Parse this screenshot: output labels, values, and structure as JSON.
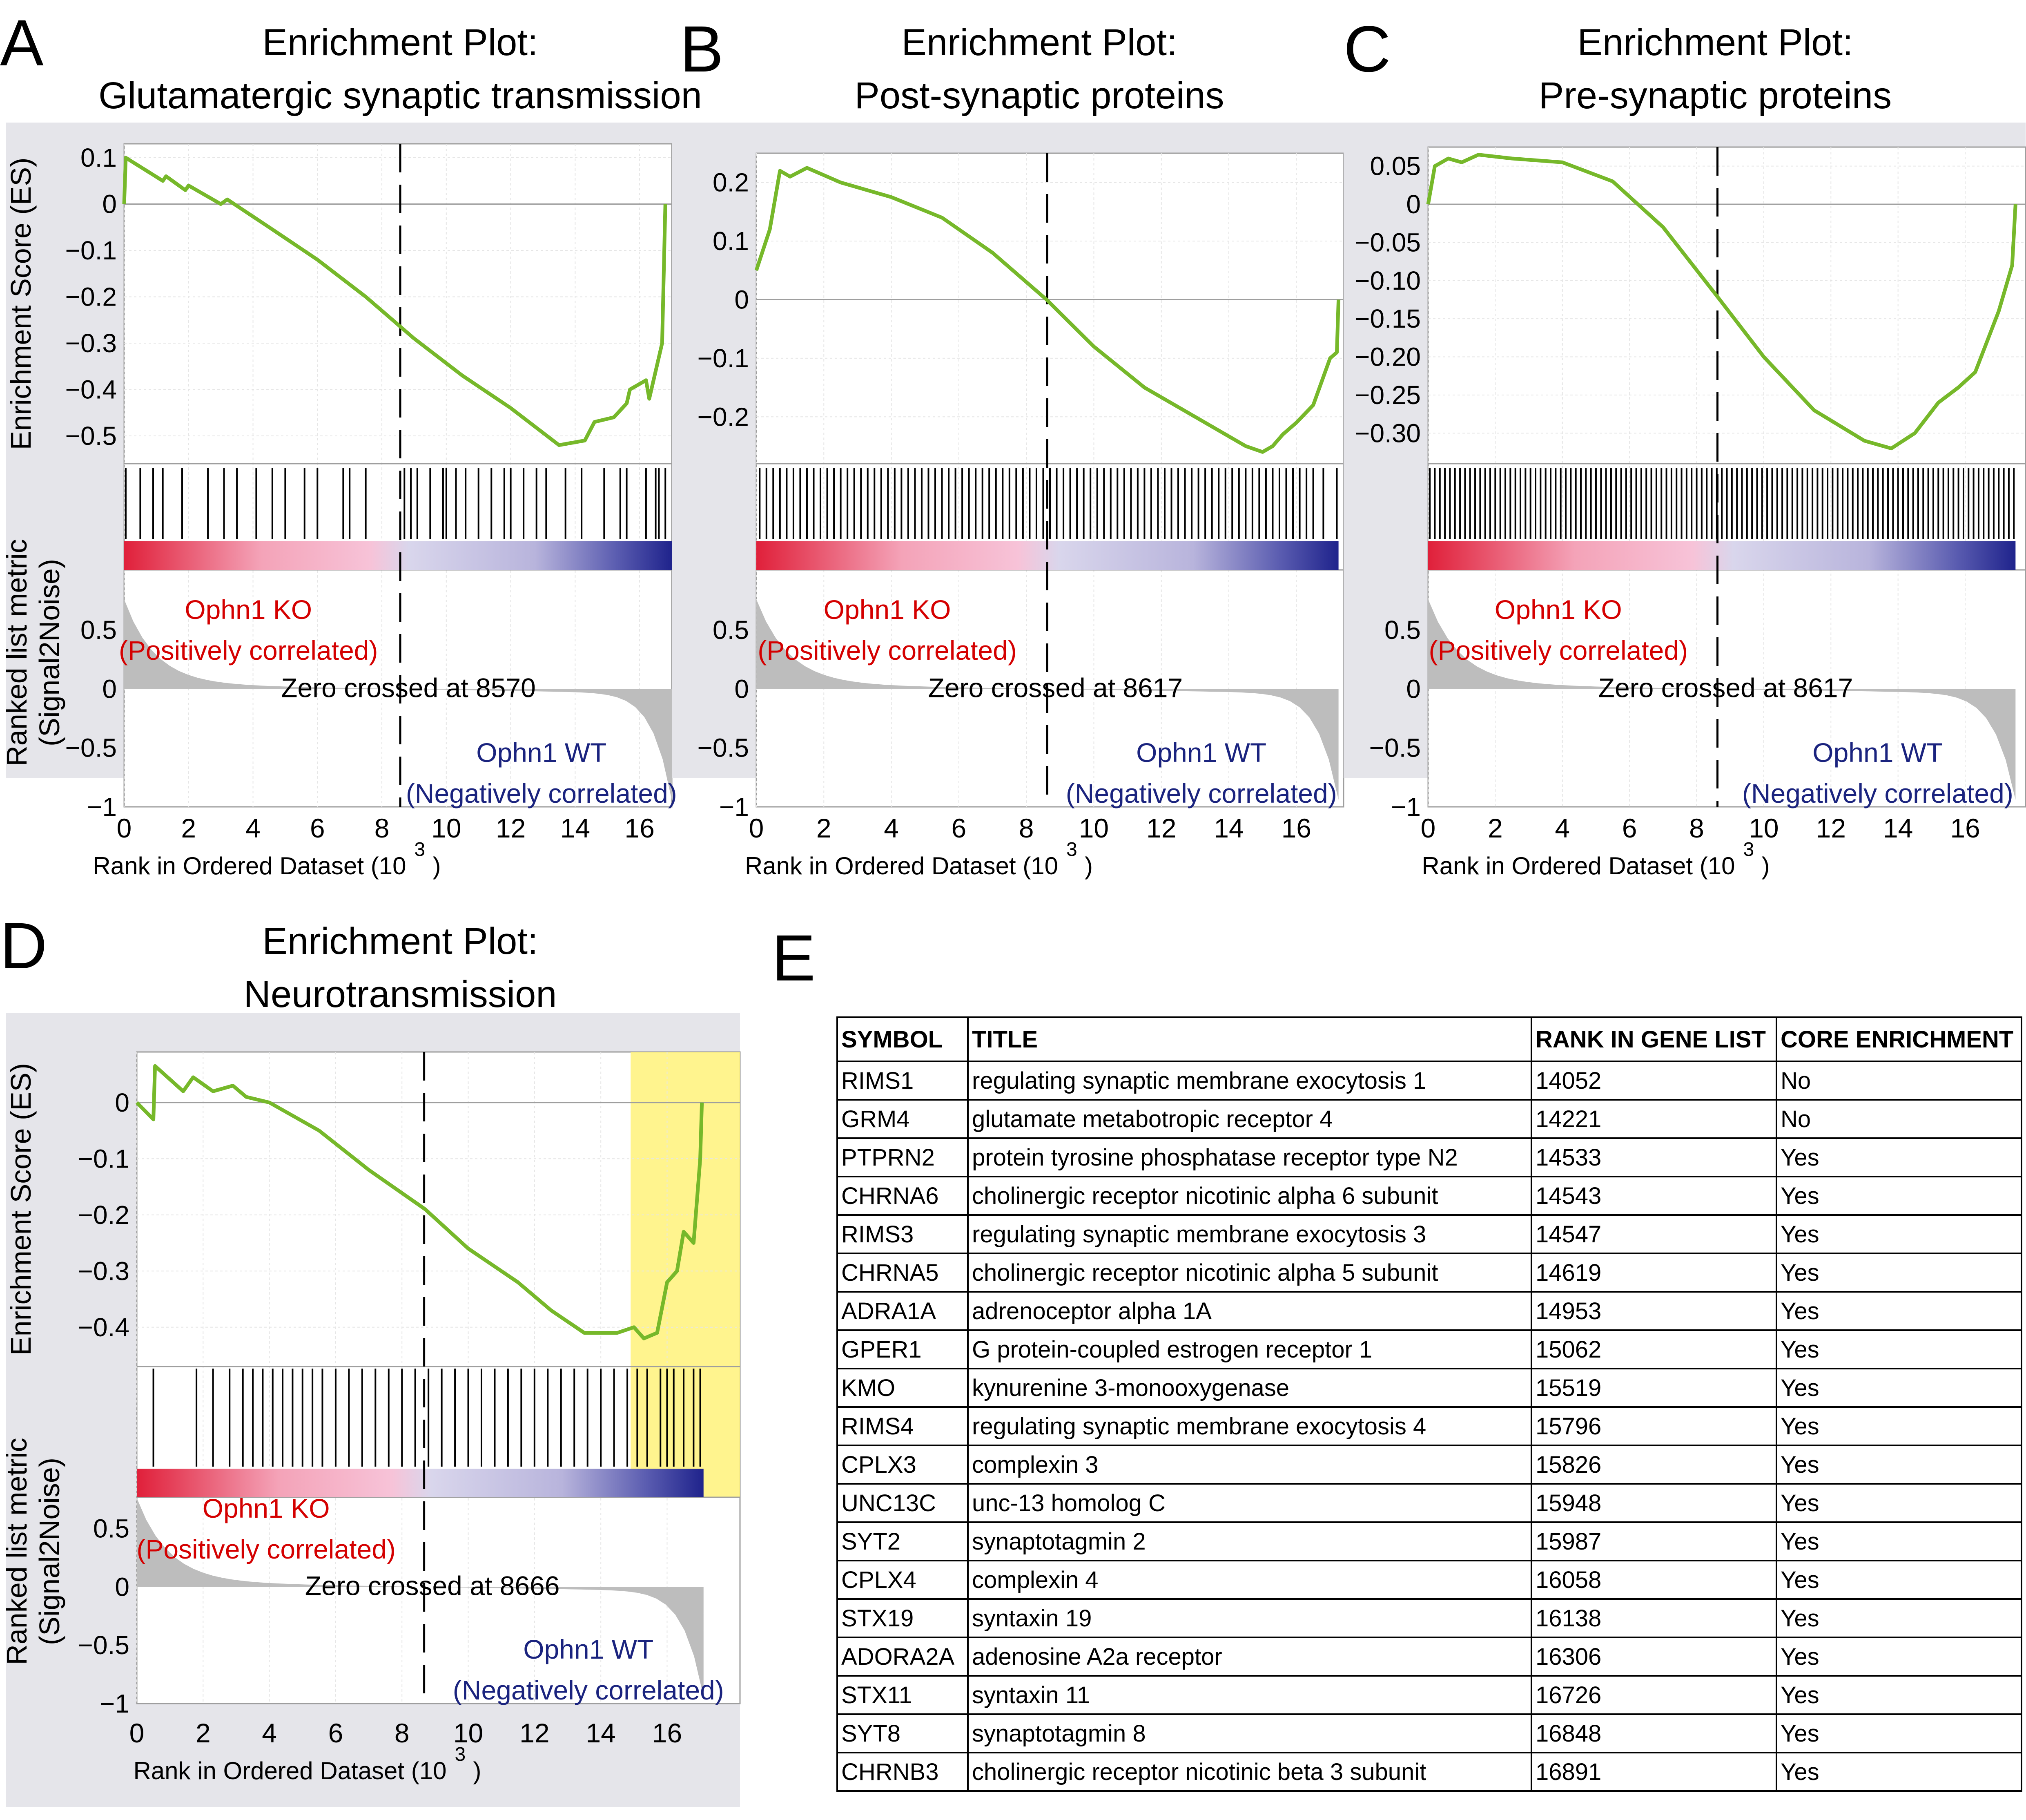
{
  "labels": {
    "ophn1_ko": "Ophn1 KO",
    "ophn1_wt": "Ophn1 WT",
    "positively_correlated": "(Positively correlated)",
    "negatively_correlated": "(Negatively correlated)"
  },
  "colors": {
    "panel_bg": "#e5e5ea",
    "es_curve": "#76b82a",
    "ko_red": "#d40000",
    "wt_blue": "#1a237e",
    "leading_edge": "#fff27a",
    "metric_fill": "#bdbdbd"
  },
  "chart_data": [
    {
      "panel_letter": "A",
      "type": "line",
      "title_line1": "Enrichment Plot:",
      "title_line2": "Glutamatergic synaptic transmission",
      "es_ylabel": "Enrichment Score (ES)",
      "metric_ylabel_line1": "Ranked list metric",
      "metric_ylabel_line2": "(Signal2Noise)",
      "xlabel": "Rank in Ordered Dataset (10",
      "xlabel_exp": "3",
      "xlabel_close": ")",
      "xlim": [
        0,
        17
      ],
      "x_ticks": [
        "0",
        "2",
        "4",
        "6",
        "8",
        "10",
        "12",
        "14",
        "16"
      ],
      "es_ylim": [
        -0.56,
        0.13
      ],
      "es_ticks": [
        {
          "v": 0.1,
          "label": "0.1"
        },
        {
          "v": 0,
          "label": "0"
        },
        {
          "v": -0.1,
          "label": "−0.1"
        },
        {
          "v": -0.2,
          "label": "−0.2"
        },
        {
          "v": -0.3,
          "label": "−0.3"
        },
        {
          "v": -0.4,
          "label": "−0.4"
        },
        {
          "v": -0.5,
          "label": "−0.5"
        }
      ],
      "metric_ylim": [
        -1,
        0.75
      ],
      "metric_ticks": [
        {
          "v": 0.5,
          "label": "0.5"
        },
        {
          "v": 0,
          "label": "0"
        },
        {
          "v": -0.5,
          "label": "−0.5"
        },
        {
          "v": -1,
          "label": "−1"
        }
      ],
      "zero_cross_rank": 8.57,
      "zero_cross_label": "Zero crossed at 8570",
      "es_curve": [
        [
          0,
          0
        ],
        [
          0.05,
          0.1
        ],
        [
          1.2,
          0.05
        ],
        [
          1.3,
          0.06
        ],
        [
          1.9,
          0.03
        ],
        [
          2.0,
          0.04
        ],
        [
          3.0,
          0.0
        ],
        [
          3.2,
          0.01
        ],
        [
          4.5,
          -0.05
        ],
        [
          6.0,
          -0.12
        ],
        [
          7.5,
          -0.2
        ],
        [
          9.0,
          -0.29
        ],
        [
          10.5,
          -0.37
        ],
        [
          12.0,
          -0.44
        ],
        [
          13.5,
          -0.52
        ],
        [
          14.3,
          -0.51
        ],
        [
          14.6,
          -0.47
        ],
        [
          15.2,
          -0.46
        ],
        [
          15.6,
          -0.43
        ],
        [
          15.7,
          -0.4
        ],
        [
          16.2,
          -0.38
        ],
        [
          16.3,
          -0.42
        ],
        [
          16.7,
          -0.3
        ],
        [
          16.8,
          0.0
        ]
      ],
      "hits": [
        0.05,
        0.5,
        0.9,
        1.2,
        1.8,
        2.6,
        3.1,
        3.5,
        4.1,
        4.6,
        5.0,
        5.6,
        6.0,
        6.8,
        7.0,
        7.5,
        8.7,
        8.9,
        9.1,
        9.5,
        9.9,
        10.0,
        10.3,
        10.6,
        11.0,
        11.4,
        11.8,
        12.0,
        12.4,
        12.8,
        13.1,
        13.7,
        14.2,
        14.9,
        15.4,
        15.6,
        16.2,
        16.5,
        16.6,
        16.8
      ],
      "n_genes": 17
    },
    {
      "panel_letter": "B",
      "type": "line",
      "title_line1": "Enrichment Plot:",
      "title_line2": "Post-synaptic proteins",
      "es_ylabel": "",
      "metric_ylabel_line1": "",
      "metric_ylabel_line2": "",
      "xlabel": "Rank in Ordered Dataset (10",
      "xlabel_exp": "3",
      "xlabel_close": ")",
      "xlim": [
        0,
        17.4
      ],
      "x_ticks": [
        "0",
        "2",
        "4",
        "6",
        "8",
        "10",
        "12",
        "14",
        "16"
      ],
      "es_ylim": [
        -0.28,
        0.25
      ],
      "es_ticks": [
        {
          "v": 0.2,
          "label": "0.2"
        },
        {
          "v": 0.1,
          "label": "0.1"
        },
        {
          "v": 0,
          "label": "0"
        },
        {
          "v": -0.1,
          "label": "−0.1"
        },
        {
          "v": -0.2,
          "label": "−0.2"
        }
      ],
      "metric_ylim": [
        -1,
        0.75
      ],
      "metric_ticks": [
        {
          "v": 0.5,
          "label": "0.5"
        },
        {
          "v": 0,
          "label": "0"
        },
        {
          "v": -0.5,
          "label": "−0.5"
        },
        {
          "v": -1,
          "label": "−1"
        }
      ],
      "zero_cross_rank": 8.62,
      "zero_cross_label": "Zero crossed at 8617",
      "es_curve": [
        [
          0,
          0.05
        ],
        [
          0.4,
          0.12
        ],
        [
          0.7,
          0.22
        ],
        [
          1.0,
          0.21
        ],
        [
          1.5,
          0.225
        ],
        [
          2.5,
          0.2
        ],
        [
          4.0,
          0.175
        ],
        [
          5.5,
          0.14
        ],
        [
          7.0,
          0.08
        ],
        [
          8.6,
          0.0
        ],
        [
          10.0,
          -0.08
        ],
        [
          11.5,
          -0.15
        ],
        [
          13.0,
          -0.2
        ],
        [
          14.5,
          -0.25
        ],
        [
          15.0,
          -0.26
        ],
        [
          15.3,
          -0.25
        ],
        [
          15.6,
          -0.23
        ],
        [
          16.0,
          -0.21
        ],
        [
          16.5,
          -0.18
        ],
        [
          17.0,
          -0.1
        ],
        [
          17.2,
          -0.09
        ],
        [
          17.25,
          0.0
        ]
      ],
      "hits": [
        0.1,
        0.3,
        0.5,
        0.7,
        0.9,
        1.1,
        1.3,
        1.5,
        1.7,
        1.9,
        2.1,
        2.3,
        2.5,
        2.7,
        2.9,
        3.1,
        3.3,
        3.5,
        3.7,
        3.9,
        4.1,
        4.3,
        4.5,
        4.7,
        4.9,
        5.1,
        5.3,
        5.5,
        5.7,
        5.9,
        6.1,
        6.3,
        6.5,
        6.7,
        6.9,
        7.1,
        7.3,
        7.5,
        7.7,
        7.9,
        8.1,
        8.3,
        8.5,
        8.7,
        8.9,
        9.1,
        9.3,
        9.5,
        9.7,
        9.9,
        10.1,
        10.3,
        10.5,
        10.7,
        10.9,
        11.1,
        11.3,
        11.5,
        11.7,
        11.9,
        12.1,
        12.3,
        12.5,
        12.7,
        12.9,
        13.1,
        13.3,
        13.5,
        13.7,
        13.9,
        14.1,
        14.3,
        14.5,
        14.7,
        14.9,
        15.1,
        15.3,
        15.5,
        15.7,
        15.9,
        16.1,
        16.3,
        16.5,
        16.8,
        17.2
      ],
      "n_genes": 17.25
    },
    {
      "panel_letter": "C",
      "type": "line",
      "title_line1": "Enrichment Plot:",
      "title_line2": "Pre-synaptic proteins",
      "es_ylabel": "",
      "metric_ylabel_line1": "",
      "metric_ylabel_line2": "",
      "xlabel": "Rank in Ordered Dataset (10",
      "xlabel_exp": "3",
      "xlabel_close": ")",
      "xlim": [
        0,
        17.8
      ],
      "x_ticks": [
        "0",
        "2",
        "4",
        "6",
        "8",
        "10",
        "12",
        "14",
        "16"
      ],
      "es_ylim": [
        -0.34,
        0.075
      ],
      "es_ticks": [
        {
          "v": 0.05,
          "label": "0.05"
        },
        {
          "v": 0,
          "label": "0"
        },
        {
          "v": -0.05,
          "label": "−0.05"
        },
        {
          "v": -0.1,
          "label": "−0.10"
        },
        {
          "v": -0.15,
          "label": "−0.15"
        },
        {
          "v": -0.2,
          "label": "−0.20"
        },
        {
          "v": -0.25,
          "label": "−0.25"
        },
        {
          "v": -0.3,
          "label": "−0.30"
        }
      ],
      "metric_ylim": [
        -1,
        0.75
      ],
      "metric_ticks": [
        {
          "v": 0.5,
          "label": "0.5"
        },
        {
          "v": 0,
          "label": "0"
        },
        {
          "v": -0.5,
          "label": "−0.5"
        },
        {
          "v": -1,
          "label": "−1"
        }
      ],
      "zero_cross_rank": 8.62,
      "zero_cross_label": "Zero crossed at 8617",
      "es_curve": [
        [
          0,
          0.0
        ],
        [
          0.2,
          0.05
        ],
        [
          0.6,
          0.06
        ],
        [
          1.0,
          0.055
        ],
        [
          1.5,
          0.065
        ],
        [
          2.5,
          0.06
        ],
        [
          4.0,
          0.055
        ],
        [
          5.5,
          0.03
        ],
        [
          7.0,
          -0.03
        ],
        [
          8.6,
          -0.12
        ],
        [
          10.0,
          -0.2
        ],
        [
          11.5,
          -0.27
        ],
        [
          13.0,
          -0.31
        ],
        [
          13.8,
          -0.32
        ],
        [
          14.5,
          -0.3
        ],
        [
          15.2,
          -0.26
        ],
        [
          15.8,
          -0.24
        ],
        [
          16.3,
          -0.22
        ],
        [
          17.0,
          -0.14
        ],
        [
          17.4,
          -0.08
        ],
        [
          17.5,
          0.0
        ]
      ],
      "hits": [
        0.05,
        0.2,
        0.35,
        0.5,
        0.65,
        0.8,
        0.95,
        1.1,
        1.25,
        1.4,
        1.55,
        1.7,
        1.85,
        2.0,
        2.15,
        2.3,
        2.45,
        2.6,
        2.75,
        2.9,
        3.05,
        3.2,
        3.35,
        3.5,
        3.65,
        3.8,
        3.95,
        4.1,
        4.25,
        4.4,
        4.55,
        4.7,
        4.85,
        5.0,
        5.15,
        5.3,
        5.45,
        5.6,
        5.75,
        5.9,
        6.05,
        6.2,
        6.35,
        6.5,
        6.65,
        6.8,
        6.95,
        7.1,
        7.25,
        7.4,
        7.55,
        7.7,
        7.85,
        8.0,
        8.15,
        8.3,
        8.45,
        8.6,
        8.75,
        8.9,
        9.05,
        9.2,
        9.35,
        9.5,
        9.65,
        9.8,
        9.95,
        10.1,
        10.25,
        10.4,
        10.55,
        10.7,
        10.85,
        11.0,
        11.15,
        11.3,
        11.45,
        11.6,
        11.75,
        11.9,
        12.05,
        12.2,
        12.35,
        12.5,
        12.65,
        12.8,
        12.95,
        13.1,
        13.25,
        13.4,
        13.55,
        13.7,
        13.85,
        14.0,
        14.15,
        14.3,
        14.45,
        14.6,
        14.75,
        14.9,
        15.05,
        15.2,
        15.35,
        15.5,
        15.65,
        15.8,
        15.95,
        16.1,
        16.25,
        16.4,
        16.55,
        16.7,
        16.85,
        17.0,
        17.15,
        17.3,
        17.45
      ],
      "n_genes": 17.5
    },
    {
      "panel_letter": "D",
      "type": "line",
      "title_line1": "Enrichment Plot:",
      "title_line2": "Neurotransmission",
      "es_ylabel": "Enrichment Score (ES)",
      "metric_ylabel_line1": "Ranked list metric",
      "metric_ylabel_line2": "(Signal2Noise)",
      "xlabel": "Rank in Ordered Dataset (10",
      "xlabel_exp": "3",
      "xlabel_close": ")",
      "xlim": [
        0,
        18.2
      ],
      "x_ticks": [
        "0",
        "2",
        "4",
        "6",
        "8",
        "10",
        "12",
        "14",
        "16"
      ],
      "es_ylim": [
        -0.47,
        0.09
      ],
      "es_ticks": [
        {
          "v": 0,
          "label": "0"
        },
        {
          "v": -0.1,
          "label": "−0.1"
        },
        {
          "v": -0.2,
          "label": "−0.2"
        },
        {
          "v": -0.3,
          "label": "−0.3"
        },
        {
          "v": -0.4,
          "label": "−0.4"
        }
      ],
      "metric_ylim": [
        -1,
        0.75
      ],
      "metric_ticks": [
        {
          "v": 0.5,
          "label": "0.5"
        },
        {
          "v": 0,
          "label": "0"
        },
        {
          "v": -0.5,
          "label": "−0.5"
        },
        {
          "v": -1,
          "label": "−1"
        }
      ],
      "zero_cross_rank": 8.67,
      "zero_cross_label": "Zero crossed at 8666",
      "leading_edge_from": 14.9,
      "es_curve": [
        [
          0,
          0.0
        ],
        [
          0.5,
          -0.03
        ],
        [
          0.55,
          0.065
        ],
        [
          1.4,
          0.02
        ],
        [
          1.7,
          0.045
        ],
        [
          2.3,
          0.02
        ],
        [
          2.9,
          0.03
        ],
        [
          3.3,
          0.01
        ],
        [
          4.0,
          0.0
        ],
        [
          5.5,
          -0.05
        ],
        [
          7.0,
          -0.12
        ],
        [
          8.7,
          -0.19
        ],
        [
          10.0,
          -0.26
        ],
        [
          11.5,
          -0.32
        ],
        [
          12.5,
          -0.37
        ],
        [
          13.5,
          -0.41
        ],
        [
          14.5,
          -0.41
        ],
        [
          15.0,
          -0.4
        ],
        [
          15.3,
          -0.42
        ],
        [
          15.7,
          -0.41
        ],
        [
          16.0,
          -0.32
        ],
        [
          16.3,
          -0.3
        ],
        [
          16.5,
          -0.23
        ],
        [
          16.8,
          -0.25
        ],
        [
          17.0,
          -0.1
        ],
        [
          17.05,
          0.0
        ]
      ],
      "hits": [
        0.5,
        1.8,
        2.3,
        2.8,
        3.2,
        3.5,
        3.8,
        4.1,
        4.4,
        4.7,
        5.0,
        5.3,
        5.6,
        6.0,
        6.4,
        6.8,
        7.2,
        7.6,
        8.0,
        8.4,
        8.8,
        9.2,
        9.6,
        10.0,
        10.4,
        10.8,
        11.2,
        11.6,
        12.0,
        12.4,
        12.8,
        13.2,
        13.6,
        14.0,
        14.4,
        14.8,
        15.1,
        15.4,
        15.8,
        16.0,
        16.2,
        16.5,
        16.8,
        17.0
      ],
      "n_genes": 17.1
    }
  ],
  "table": {
    "panel_letter": "E",
    "headers": [
      "SYMBOL",
      "TITLE",
      "RANK IN GENE LIST",
      "CORE ENRICHMENT"
    ],
    "rows": [
      [
        "RIMS1",
        "regulating synaptic membrane exocytosis 1",
        "14052",
        "No"
      ],
      [
        "GRM4",
        "glutamate metabotropic receptor 4",
        "14221",
        "No"
      ],
      [
        "PTPRN2",
        "protein tyrosine phosphatase receptor type N2",
        "14533",
        "Yes"
      ],
      [
        "CHRNA6",
        "cholinergic receptor nicotinic alpha 6 subunit",
        "14543",
        "Yes"
      ],
      [
        "RIMS3",
        "regulating synaptic membrane exocytosis 3",
        "14547",
        "Yes"
      ],
      [
        "CHRNA5",
        "cholinergic receptor nicotinic alpha 5 subunit",
        "14619",
        "Yes"
      ],
      [
        "ADRA1A",
        "adrenoceptor alpha 1A",
        "14953",
        "Yes"
      ],
      [
        "GPER1",
        "G protein-coupled estrogen receptor 1",
        "15062",
        "Yes"
      ],
      [
        "KMO",
        "kynurenine 3-monooxygenase",
        "15519",
        "Yes"
      ],
      [
        "RIMS4",
        "regulating synaptic membrane exocytosis 4",
        "15796",
        "Yes"
      ],
      [
        "CPLX3",
        "complexin 3",
        "15826",
        "Yes"
      ],
      [
        "UNC13C",
        "unc-13 homolog C",
        "15948",
        "Yes"
      ],
      [
        "SYT2",
        "synaptotagmin 2",
        "15987",
        "Yes"
      ],
      [
        "CPLX4",
        "complexin 4",
        "16058",
        "Yes"
      ],
      [
        "STX19",
        "syntaxin 19",
        "16138",
        "Yes"
      ],
      [
        "ADORA2A",
        "adenosine A2a receptor",
        "16306",
        "Yes"
      ],
      [
        "STX11",
        "syntaxin 11",
        "16726",
        "Yes"
      ],
      [
        "SYT8",
        "synaptotagmin 8",
        "16848",
        "Yes"
      ],
      [
        "CHRNB3",
        "cholinergic receptor nicotinic beta 3 subunit",
        "16891",
        "Yes"
      ]
    ]
  }
}
